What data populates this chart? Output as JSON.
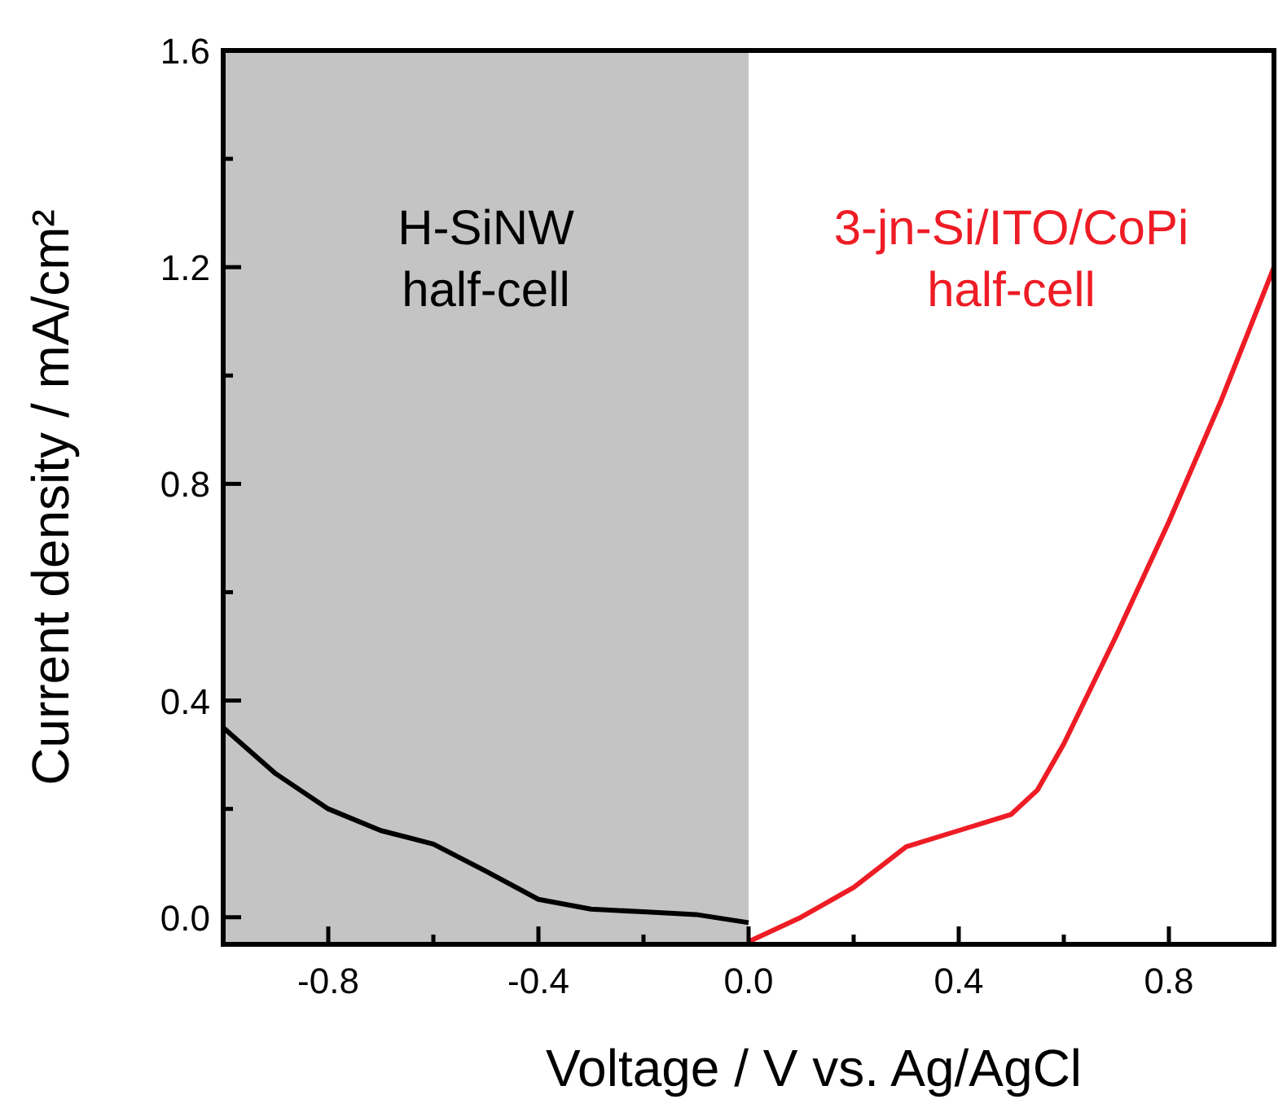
{
  "chart_data": {
    "type": "line",
    "xlabel": "Voltage / V vs. Ag/AgCl",
    "ylabel": "Current density / mA/cm²",
    "xlim": [
      -1,
      1
    ],
    "ylim": [
      -0.05,
      1.6
    ],
    "xticks": [
      {
        "value": -0.8,
        "label": "-0.8"
      },
      {
        "value": -0.6,
        "label": null
      },
      {
        "value": -0.4,
        "label": "-0.4"
      },
      {
        "value": -0.2,
        "label": null
      },
      {
        "value": 0,
        "label": "0.0"
      },
      {
        "value": 0.2,
        "label": null
      },
      {
        "value": 0.4,
        "label": "0.4"
      },
      {
        "value": 0.6,
        "label": null
      },
      {
        "value": 0.8,
        "label": "0.8"
      }
    ],
    "yticks": [
      {
        "value": 0,
        "label": "0.0"
      },
      {
        "value": 0.2,
        "label": null
      },
      {
        "value": 0.4,
        "label": "0.4"
      },
      {
        "value": 0.6,
        "label": null
      },
      {
        "value": 0.8,
        "label": "0.8"
      },
      {
        "value": 1.0,
        "label": null
      },
      {
        "value": 1.2,
        "label": "1.2"
      },
      {
        "value": 1.4,
        "label": null
      },
      {
        "value": 1.6,
        "label": "1.6"
      }
    ],
    "grid": false,
    "legend": false,
    "marker": "none",
    "line_style": "solid",
    "bands": [
      {
        "axis": "x",
        "from": -1,
        "to": 0,
        "color": "#c3c4c3"
      }
    ],
    "series": [
      {
        "name": "H-SiNW half-cell",
        "color": "#000000",
        "x": [
          -1,
          -0.9,
          -0.8,
          -0.7,
          -0.6,
          -0.5,
          -0.4,
          -0.3,
          -0.2,
          -0.1,
          0
        ],
        "values": [
          0.35,
          0.265,
          0.2,
          0.16,
          0.135,
          0.085,
          0.033,
          0.015,
          0.01,
          0.005,
          -0.01
        ]
      },
      {
        "name": "3-jn-Si/ITO/CoPi half-cell",
        "color": "#ee1c25",
        "x": [
          0,
          0.1,
          0.2,
          0.3,
          0.4,
          0.5,
          0.55,
          0.6,
          0.7,
          0.8,
          0.9,
          1.0
        ],
        "values": [
          -0.045,
          0,
          0.055,
          0.13,
          0.16,
          0.19,
          0.235,
          0.32,
          0.52,
          0.73,
          0.955,
          1.2
        ]
      }
    ]
  }
}
